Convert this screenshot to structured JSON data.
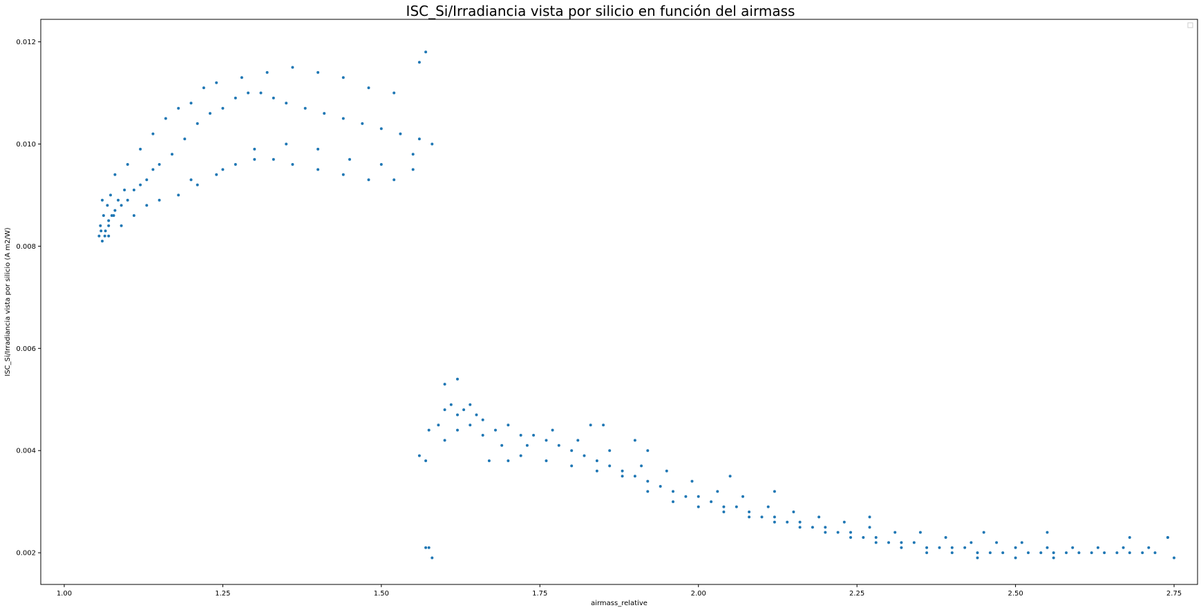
{
  "chart_data": {
    "type": "scatter",
    "title": "ISC_Si/Irradiancia vista por silicio en función del airmass",
    "xlabel": "airmass_relative",
    "ylabel": "ISC_Si/Irradiancia vista por silicio (A m2/W)",
    "xlim": [
      0.963,
      2.787
    ],
    "ylim": [
      0.00138,
      0.01244
    ],
    "xticks": [
      1.0,
      1.25,
      1.5,
      1.75,
      2.0,
      2.25,
      2.5,
      2.75
    ],
    "xtick_labels": [
      "1.00",
      "1.25",
      "1.50",
      "1.75",
      "2.00",
      "2.25",
      "2.50",
      "2.75"
    ],
    "yticks": [
      0.002,
      0.004,
      0.006,
      0.008,
      0.01,
      0.012
    ],
    "ytick_labels": [
      "0.002",
      "0.004",
      "0.006",
      "0.008",
      "0.010",
      "0.012"
    ],
    "grid": false,
    "legend": "top-right (empty)",
    "color": "#1f77b4",
    "series": [
      {
        "points": [
          [
            1.055,
            0.0082
          ],
          [
            1.06,
            0.0081
          ],
          [
            1.065,
            0.0083
          ],
          [
            1.07,
            0.0085
          ],
          [
            1.075,
            0.0086
          ],
          [
            1.08,
            0.0087
          ],
          [
            1.09,
            0.0088
          ],
          [
            1.1,
            0.0089
          ],
          [
            1.11,
            0.0091
          ],
          [
            1.12,
            0.0092
          ],
          [
            1.13,
            0.0093
          ],
          [
            1.14,
            0.0095
          ],
          [
            1.15,
            0.0096
          ],
          [
            1.17,
            0.0098
          ],
          [
            1.19,
            0.0101
          ],
          [
            1.21,
            0.0104
          ],
          [
            1.23,
            0.0106
          ],
          [
            1.25,
            0.0107
          ],
          [
            1.27,
            0.0109
          ],
          [
            1.29,
            0.011
          ],
          [
            1.31,
            0.011
          ],
          [
            1.33,
            0.0109
          ],
          [
            1.35,
            0.0108
          ],
          [
            1.38,
            0.0107
          ],
          [
            1.41,
            0.0106
          ],
          [
            1.44,
            0.0105
          ],
          [
            1.47,
            0.0104
          ],
          [
            1.5,
            0.0103
          ],
          [
            1.53,
            0.0102
          ],
          [
            1.56,
            0.0101
          ],
          [
            1.06,
            0.0089
          ],
          [
            1.08,
            0.0094
          ],
          [
            1.1,
            0.0096
          ],
          [
            1.12,
            0.0099
          ],
          [
            1.14,
            0.0102
          ],
          [
            1.16,
            0.0105
          ],
          [
            1.18,
            0.0107
          ],
          [
            1.2,
            0.0108
          ],
          [
            1.22,
            0.0111
          ],
          [
            1.24,
            0.0112
          ],
          [
            1.28,
            0.0113
          ],
          [
            1.32,
            0.0114
          ],
          [
            1.36,
            0.0115
          ],
          [
            1.4,
            0.0114
          ],
          [
            1.44,
            0.0113
          ],
          [
            1.48,
            0.0111
          ],
          [
            1.52,
            0.011
          ],
          [
            1.56,
            0.0116
          ],
          [
            1.57,
            0.0118
          ],
          [
            1.07,
            0.0082
          ],
          [
            1.09,
            0.0084
          ],
          [
            1.11,
            0.0086
          ],
          [
            1.13,
            0.0088
          ],
          [
            1.15,
            0.0089
          ],
          [
            1.18,
            0.009
          ],
          [
            1.21,
            0.0092
          ],
          [
            1.24,
            0.0094
          ],
          [
            1.27,
            0.0096
          ],
          [
            1.3,
            0.0097
          ],
          [
            1.33,
            0.0097
          ],
          [
            1.36,
            0.0096
          ],
          [
            1.4,
            0.0095
          ],
          [
            1.44,
            0.0094
          ],
          [
            1.48,
            0.0093
          ],
          [
            1.52,
            0.0093
          ],
          [
            1.55,
            0.0095
          ],
          [
            1.58,
            0.01
          ],
          [
            1.2,
            0.0093
          ],
          [
            1.25,
            0.0095
          ],
          [
            1.3,
            0.0099
          ],
          [
            1.35,
            0.01
          ],
          [
            1.4,
            0.0099
          ],
          [
            1.45,
            0.0097
          ],
          [
            1.5,
            0.0096
          ],
          [
            1.55,
            0.0098
          ],
          [
            1.057,
            0.0084
          ],
          [
            1.062,
            0.0086
          ],
          [
            1.068,
            0.0088
          ],
          [
            1.073,
            0.009
          ],
          [
            1.058,
            0.0083
          ],
          [
            1.064,
            0.0082
          ],
          [
            1.07,
            0.0084
          ],
          [
            1.078,
            0.0086
          ],
          [
            1.085,
            0.0089
          ],
          [
            1.095,
            0.0091
          ],
          [
            1.56,
            0.0039
          ],
          [
            1.57,
            0.0038
          ],
          [
            1.575,
            0.0044
          ],
          [
            1.57,
            0.0021
          ],
          [
            1.575,
            0.0021
          ],
          [
            1.58,
            0.0019
          ],
          [
            1.59,
            0.0045
          ],
          [
            1.6,
            0.0048
          ],
          [
            1.61,
            0.0049
          ],
          [
            1.62,
            0.0047
          ],
          [
            1.63,
            0.0048
          ],
          [
            1.64,
            0.0049
          ],
          [
            1.65,
            0.0047
          ],
          [
            1.66,
            0.0046
          ],
          [
            1.6,
            0.0053
          ],
          [
            1.62,
            0.0054
          ],
          [
            1.6,
            0.0042
          ],
          [
            1.62,
            0.0044
          ],
          [
            1.64,
            0.0045
          ],
          [
            1.67,
            0.0038
          ],
          [
            1.7,
            0.0038
          ],
          [
            1.68,
            0.0044
          ],
          [
            1.7,
            0.0045
          ],
          [
            1.72,
            0.0043
          ],
          [
            1.74,
            0.0043
          ],
          [
            1.76,
            0.0042
          ],
          [
            1.78,
            0.0041
          ],
          [
            1.8,
            0.004
          ],
          [
            1.82,
            0.0039
          ],
          [
            1.84,
            0.0038
          ],
          [
            1.86,
            0.0037
          ],
          [
            1.88,
            0.0036
          ],
          [
            1.9,
            0.0035
          ],
          [
            1.92,
            0.0034
          ],
          [
            1.94,
            0.0033
          ],
          [
            1.96,
            0.0032
          ],
          [
            1.98,
            0.0031
          ],
          [
            2.0,
            0.0031
          ],
          [
            2.02,
            0.003
          ],
          [
            2.04,
            0.0029
          ],
          [
            2.06,
            0.0029
          ],
          [
            2.08,
            0.0028
          ],
          [
            2.1,
            0.0027
          ],
          [
            2.12,
            0.0027
          ],
          [
            2.14,
            0.0026
          ],
          [
            2.16,
            0.0026
          ],
          [
            2.18,
            0.0025
          ],
          [
            2.2,
            0.0025
          ],
          [
            2.22,
            0.0024
          ],
          [
            2.24,
            0.0024
          ],
          [
            2.26,
            0.0023
          ],
          [
            2.28,
            0.0023
          ],
          [
            2.3,
            0.0022
          ],
          [
            2.32,
            0.0022
          ],
          [
            2.34,
            0.0022
          ],
          [
            2.36,
            0.0021
          ],
          [
            2.38,
            0.0021
          ],
          [
            2.4,
            0.0021
          ],
          [
            2.42,
            0.0021
          ],
          [
            2.44,
            0.002
          ],
          [
            2.46,
            0.002
          ],
          [
            2.48,
            0.002
          ],
          [
            2.5,
            0.0021
          ],
          [
            2.52,
            0.002
          ],
          [
            2.54,
            0.002
          ],
          [
            2.56,
            0.002
          ],
          [
            2.58,
            0.002
          ],
          [
            2.6,
            0.002
          ],
          [
            2.62,
            0.002
          ],
          [
            2.64,
            0.002
          ],
          [
            2.66,
            0.002
          ],
          [
            2.68,
            0.002
          ],
          [
            2.7,
            0.002
          ],
          [
            2.72,
            0.002
          ],
          [
            2.74,
            0.0023
          ],
          [
            2.75,
            0.0019
          ],
          [
            1.72,
            0.0039
          ],
          [
            1.76,
            0.0038
          ],
          [
            1.8,
            0.0037
          ],
          [
            1.84,
            0.0036
          ],
          [
            1.88,
            0.0035
          ],
          [
            1.92,
            0.0032
          ],
          [
            1.96,
            0.003
          ],
          [
            2.0,
            0.0029
          ],
          [
            2.04,
            0.0028
          ],
          [
            2.08,
            0.0027
          ],
          [
            2.12,
            0.0026
          ],
          [
            2.16,
            0.0025
          ],
          [
            2.2,
            0.0024
          ],
          [
            2.24,
            0.0023
          ],
          [
            2.28,
            0.0022
          ],
          [
            2.32,
            0.0021
          ],
          [
            2.36,
            0.002
          ],
          [
            2.4,
            0.002
          ],
          [
            2.44,
            0.0019
          ],
          [
            2.5,
            0.0019
          ],
          [
            2.56,
            0.0019
          ],
          [
            1.83,
            0.0045
          ],
          [
            1.85,
            0.0045
          ],
          [
            1.9,
            0.0042
          ],
          [
            1.92,
            0.004
          ],
          [
            2.05,
            0.0035
          ],
          [
            2.12,
            0.0032
          ],
          [
            2.27,
            0.0027
          ],
          [
            2.45,
            0.0024
          ],
          [
            2.55,
            0.0024
          ],
          [
            2.68,
            0.0023
          ],
          [
            2.74,
            0.0023
          ],
          [
            1.66,
            0.0043
          ],
          [
            1.69,
            0.0041
          ],
          [
            1.73,
            0.0041
          ],
          [
            1.77,
            0.0044
          ],
          [
            1.81,
            0.0042
          ],
          [
            1.86,
            0.004
          ],
          [
            1.91,
            0.0037
          ],
          [
            1.95,
            0.0036
          ],
          [
            1.99,
            0.0034
          ],
          [
            2.03,
            0.0032
          ],
          [
            2.07,
            0.0031
          ],
          [
            2.11,
            0.0029
          ],
          [
            2.15,
            0.0028
          ],
          [
            2.19,
            0.0027
          ],
          [
            2.23,
            0.0026
          ],
          [
            2.27,
            0.0025
          ],
          [
            2.31,
            0.0024
          ],
          [
            2.35,
            0.0024
          ],
          [
            2.39,
            0.0023
          ],
          [
            2.43,
            0.0022
          ],
          [
            2.47,
            0.0022
          ],
          [
            2.51,
            0.0022
          ],
          [
            2.55,
            0.0021
          ],
          [
            2.59,
            0.0021
          ],
          [
            2.63,
            0.0021
          ],
          [
            2.67,
            0.0021
          ],
          [
            2.71,
            0.0021
          ]
        ]
      }
    ]
  }
}
